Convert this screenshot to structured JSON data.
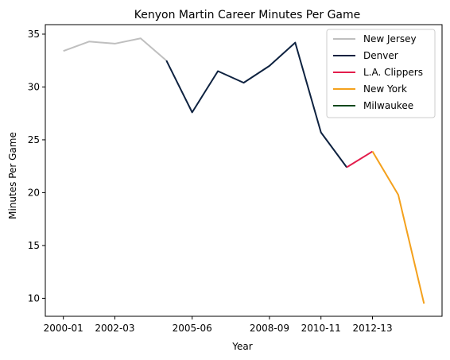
{
  "chart_data": {
    "type": "line",
    "title": "Kenyon Martin Career Minutes Per Game",
    "xlabel": "Year",
    "ylabel": "Minutes Per Game",
    "x_categories": [
      "2000-01",
      "2001-02",
      "2002-03",
      "2003-04",
      "2004-05",
      "2005-06",
      "2006-07",
      "2007-08",
      "2008-09",
      "2009-10",
      "2010-11",
      "2011-12",
      "2012-13",
      "2013-14",
      "2014-15"
    ],
    "x_tick_labels": [
      "2000-01",
      "2002-03",
      "2005-06",
      "2008-09",
      "2010-11",
      "2012-13"
    ],
    "ylim": [
      8.3,
      35.9
    ],
    "y_ticks": [
      10,
      15,
      20,
      25,
      30,
      35
    ],
    "grid": false,
    "legend_position": "top-right",
    "series": [
      {
        "name": "New Jersey",
        "color": "#bfbfbf",
        "points": [
          [
            0,
            33.4
          ],
          [
            1,
            34.3
          ],
          [
            2,
            34.1
          ],
          [
            3,
            34.6
          ],
          [
            4,
            32.5
          ]
        ]
      },
      {
        "name": "Denver",
        "color": "#0e2240",
        "points": [
          [
            4,
            32.5
          ],
          [
            5,
            27.6
          ],
          [
            6,
            31.5
          ],
          [
            7,
            30.4
          ],
          [
            8,
            32.0
          ],
          [
            9,
            34.2
          ],
          [
            10,
            25.7
          ],
          [
            11,
            22.4
          ]
        ]
      },
      {
        "name": "L.A. Clippers",
        "color": "#e31d4c",
        "points": [
          [
            11,
            22.4
          ],
          [
            12,
            23.9
          ]
        ]
      },
      {
        "name": "New York",
        "color": "#f4a11d",
        "points": [
          [
            12,
            23.9
          ],
          [
            13,
            19.8
          ],
          [
            14,
            9.5
          ]
        ]
      },
      {
        "name": "Milwaukee",
        "color": "#00471b",
        "points": []
      }
    ]
  }
}
